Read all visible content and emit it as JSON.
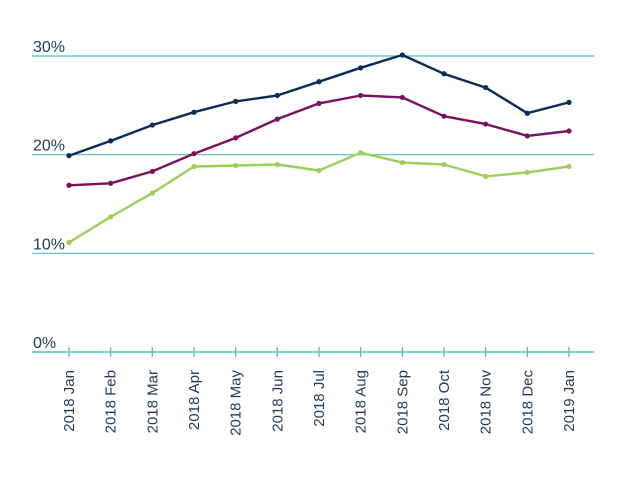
{
  "chart_data": {
    "type": "line",
    "title": "",
    "xlabel": "",
    "ylabel": "",
    "ylim": [
      0,
      30
    ],
    "yticks": [
      {
        "value": 0,
        "label": "0%"
      },
      {
        "value": 10,
        "label": "10%"
      },
      {
        "value": 20,
        "label": "20%"
      },
      {
        "value": 30,
        "label": "30%"
      }
    ],
    "categories": [
      "2018 Jan",
      "2018 Feb",
      "2018 Mar",
      "2018 Apr",
      "2018 May",
      "2018 Jun",
      "2018 Jul",
      "2018 Aug",
      "2018 Sep",
      "2018 Oct",
      "2018 Nov",
      "2018 Dec",
      "2019 Jan"
    ],
    "grid": "horizontal",
    "legend": "none",
    "series": [
      {
        "color": "#0d2b57",
        "values": [
          19.9,
          21.4,
          23.0,
          24.3,
          25.4,
          26.0,
          27.4,
          28.8,
          30.1,
          28.2,
          26.8,
          24.2,
          25.3
        ]
      },
      {
        "color": "#7a1060",
        "values": [
          16.9,
          17.1,
          18.3,
          20.1,
          21.7,
          23.6,
          25.2,
          26.0,
          25.8,
          23.9,
          23.1,
          21.9,
          22.4
        ]
      },
      {
        "color": "#9bcf5a",
        "values": [
          11.1,
          13.7,
          16.1,
          18.8,
          18.9,
          19.0,
          18.4,
          20.2,
          19.2,
          19.0,
          17.8,
          18.2,
          18.8
        ]
      }
    ]
  }
}
